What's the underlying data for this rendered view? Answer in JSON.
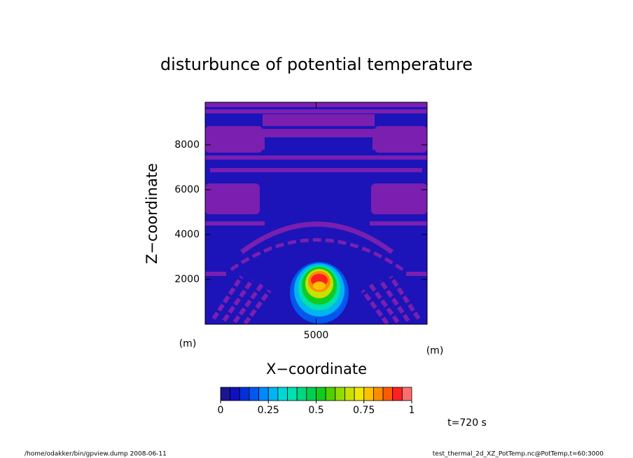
{
  "chart_data": {
    "type": "contour",
    "title": "disturbunce of potential temperature",
    "x_label": "X−coordinate",
    "y_label": "Z−coordinate",
    "x_unit": "(m)",
    "y_unit": "(m)",
    "xlim": [
      0,
      10000
    ],
    "xticks": [
      5000
    ],
    "ylim": [
      0,
      9900
    ],
    "yticks": [
      2000,
      4000,
      6000,
      8000
    ],
    "colorbar": {
      "levels": [
        0,
        0.05,
        0.1,
        0.15,
        0.2,
        0.25,
        0.3,
        0.35,
        0.4,
        0.45,
        0.5,
        0.55,
        0.6,
        0.65,
        0.7,
        0.75,
        0.8,
        0.85,
        0.9,
        0.95,
        1
      ],
      "colors": [
        "#1a1590",
        "#1010c0",
        "#0030d8",
        "#0058ee",
        "#0088ff",
        "#00b4f0",
        "#00d8d8",
        "#00e0b0",
        "#00d880",
        "#00d050",
        "#10cc20",
        "#50d000",
        "#90dc00",
        "#c8e000",
        "#f0e800",
        "#ffc000",
        "#ff8c00",
        "#ff5a00",
        "#ff2020",
        "#ff6e6e"
      ],
      "ticks": [
        0,
        0.25,
        0.5,
        0.75,
        1
      ]
    },
    "annotation": "t=720 s",
    "footer_left": "/home/odakker/bin/gpview.dump  2008-06-11",
    "footer_right": "test_thermal_2d_XZ_PotTemp.nc@PotTemp,t=60:3000"
  }
}
